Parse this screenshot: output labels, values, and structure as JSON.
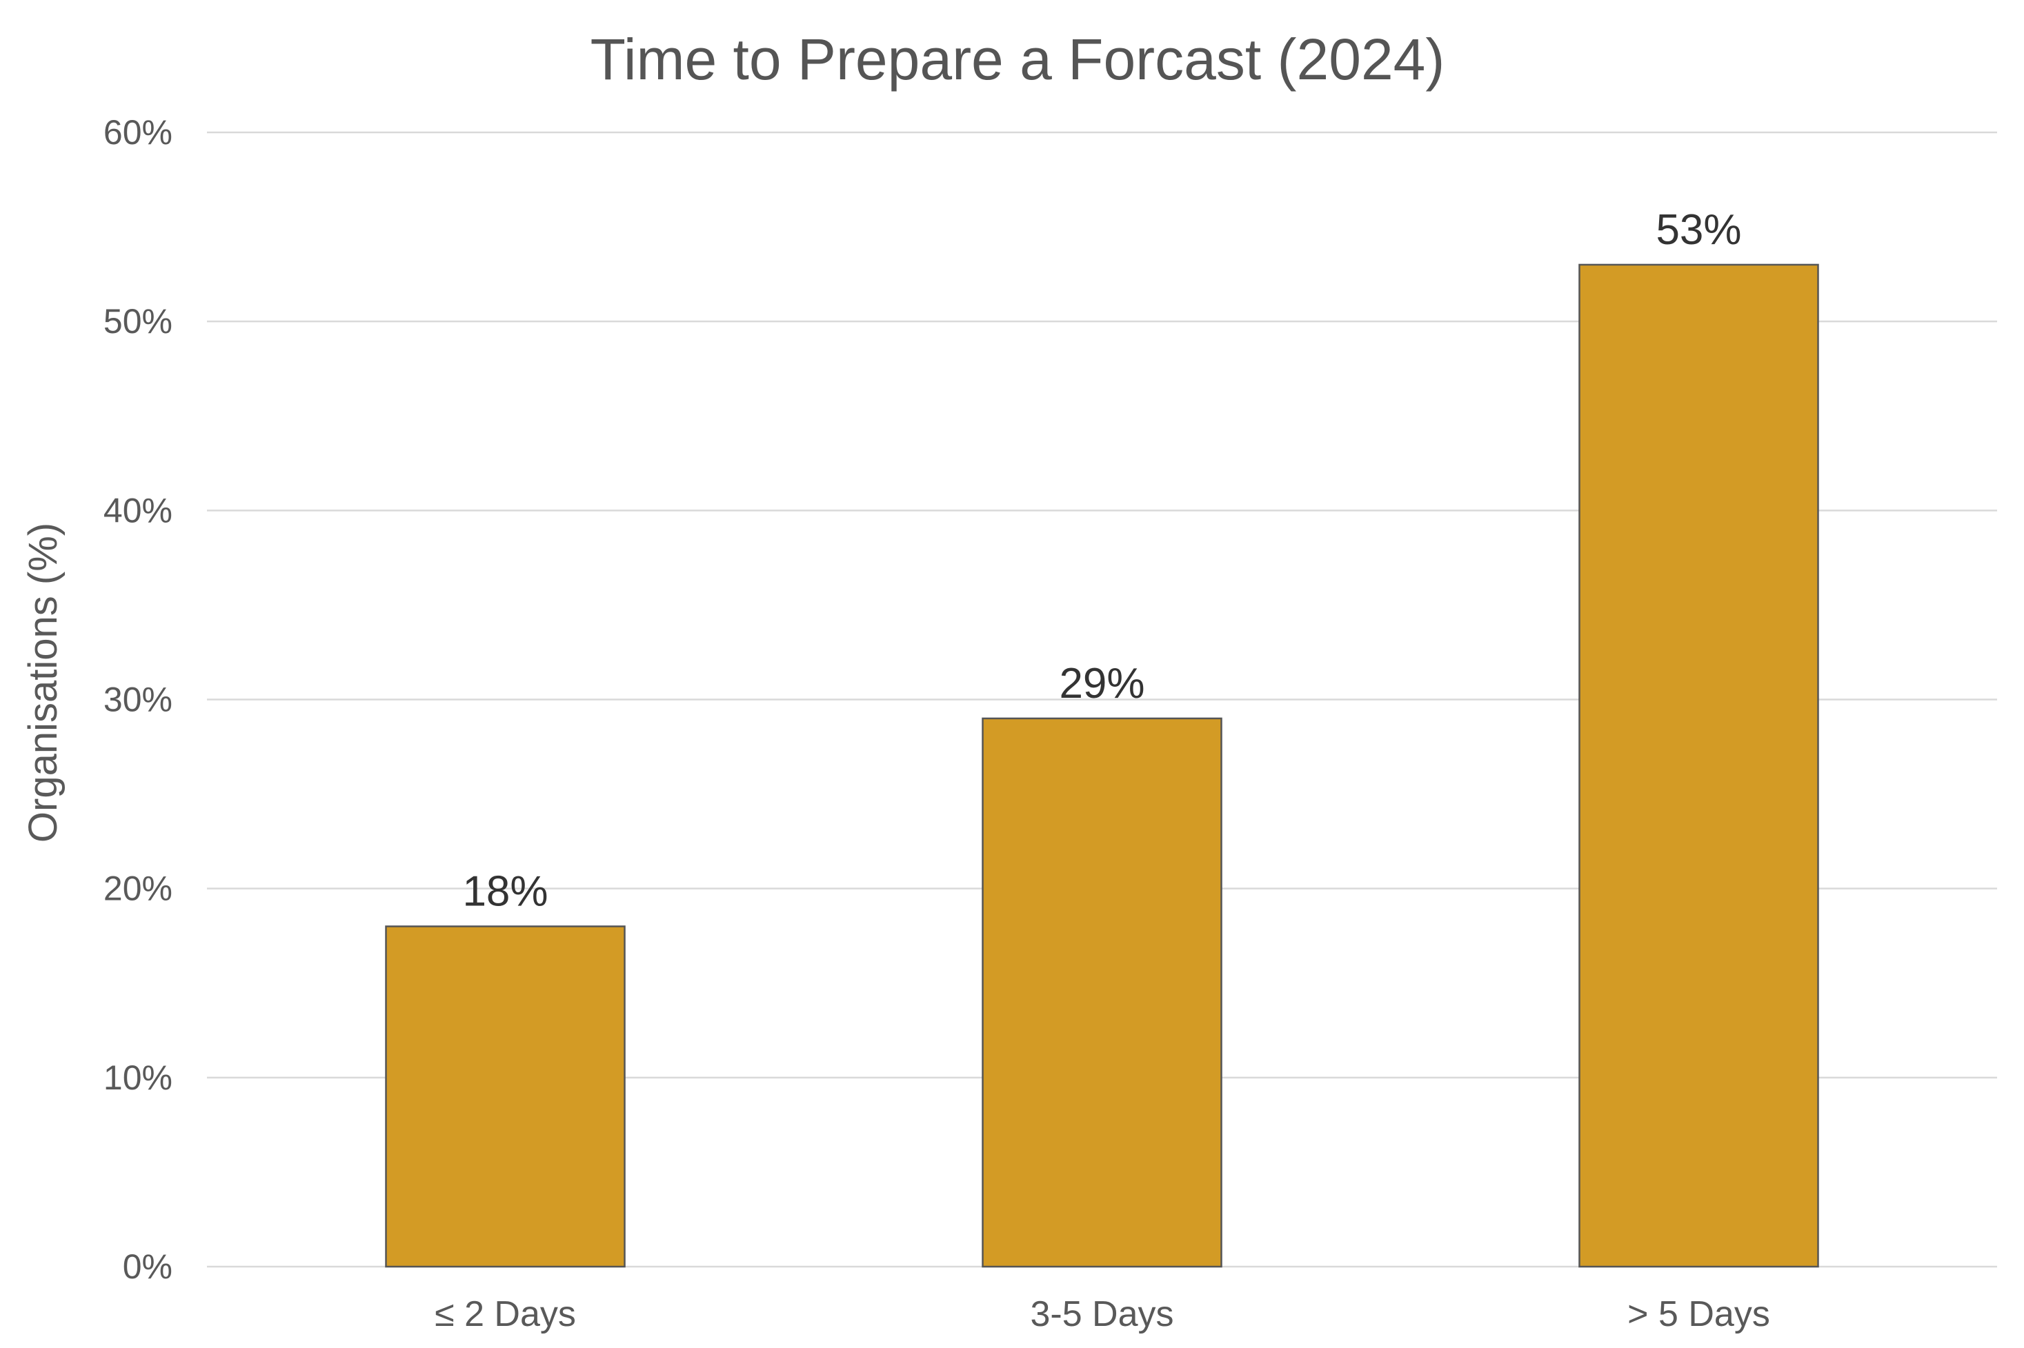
{
  "chart_data": {
    "type": "bar",
    "title": "Time to Prepare a Forcast (2024)",
    "xlabel": "",
    "ylabel": "Organisations (%)",
    "categories": [
      "≤ 2 Days",
      "3-5 Days",
      "> 5 Days"
    ],
    "values": [
      18,
      29,
      53
    ],
    "value_labels": [
      "18%",
      "29%",
      "53%"
    ],
    "ylim": [
      0,
      60
    ],
    "yticks": [
      0,
      10,
      20,
      30,
      40,
      50,
      60
    ],
    "ytick_labels": [
      "0%",
      "10%",
      "20%",
      "30%",
      "40%",
      "50%",
      "60%"
    ],
    "grid": "horizontal",
    "legend": "none",
    "bar_color": "#D39B25",
    "bar_edge_color": "#555555"
  }
}
